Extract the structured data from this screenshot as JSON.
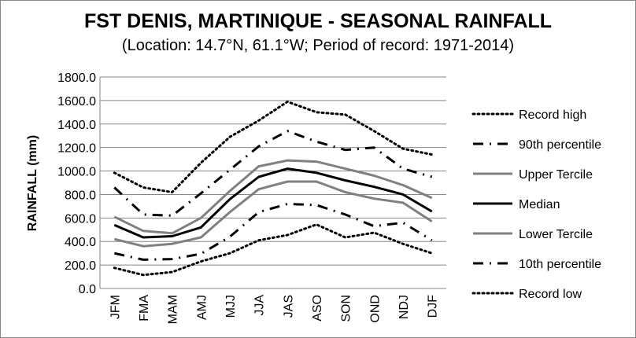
{
  "chart_data": {
    "type": "line",
    "title": "FST DENIS, MARTINIQUE - SEASONAL RAINFALL",
    "subtitle": "(Location: 14.7°N, 61.1°W; Period of record: 1971-2014)",
    "xlabel": "",
    "ylabel": "RAINFALL (mm)",
    "ylim": [
      0,
      1800
    ],
    "y_ticks": [
      "0.0",
      "200.0",
      "400.0",
      "600.0",
      "800.0",
      "1000.0",
      "1200.0",
      "1400.0",
      "1600.0",
      "1800.0"
    ],
    "categories": [
      "JFM",
      "FMA",
      "MAM",
      "AMJ",
      "MJJ",
      "JJA",
      "JAS",
      "ASO",
      "SON",
      "OND",
      "NDJ",
      "DJF"
    ],
    "grid": true,
    "legend_position": "right",
    "series": [
      {
        "name": "Record high",
        "style": "dotted",
        "color": "#000000",
        "values": [
          985,
          860,
          820,
          1070,
          1290,
          1430,
          1590,
          1500,
          1480,
          1340,
          1190,
          1140
        ]
      },
      {
        "name": "90th percentile",
        "style": "dashdot",
        "color": "#000000",
        "values": [
          860,
          630,
          620,
          810,
          1010,
          1210,
          1340,
          1250,
          1180,
          1200,
          1020,
          950
        ]
      },
      {
        "name": "Upper Tercile",
        "style": "solid",
        "color": "#808080",
        "values": [
          610,
          490,
          470,
          600,
          830,
          1040,
          1090,
          1080,
          1020,
          960,
          880,
          770
        ]
      },
      {
        "name": "Median",
        "style": "solid",
        "color": "#000000",
        "values": [
          540,
          435,
          445,
          520,
          760,
          950,
          1020,
          985,
          920,
          865,
          800,
          655
        ]
      },
      {
        "name": "Lower Tercile",
        "style": "solid",
        "color": "#808080",
        "values": [
          420,
          360,
          380,
          435,
          650,
          845,
          910,
          910,
          820,
          765,
          730,
          570
        ]
      },
      {
        "name": "10th percentile",
        "style": "dashdot",
        "color": "#000000",
        "values": [
          300,
          245,
          250,
          295,
          440,
          650,
          720,
          710,
          630,
          530,
          560,
          410
        ]
      },
      {
        "name": "Record low",
        "style": "dotted",
        "color": "#000000",
        "values": [
          175,
          115,
          140,
          230,
          300,
          410,
          455,
          545,
          435,
          475,
          380,
          300
        ]
      }
    ]
  }
}
